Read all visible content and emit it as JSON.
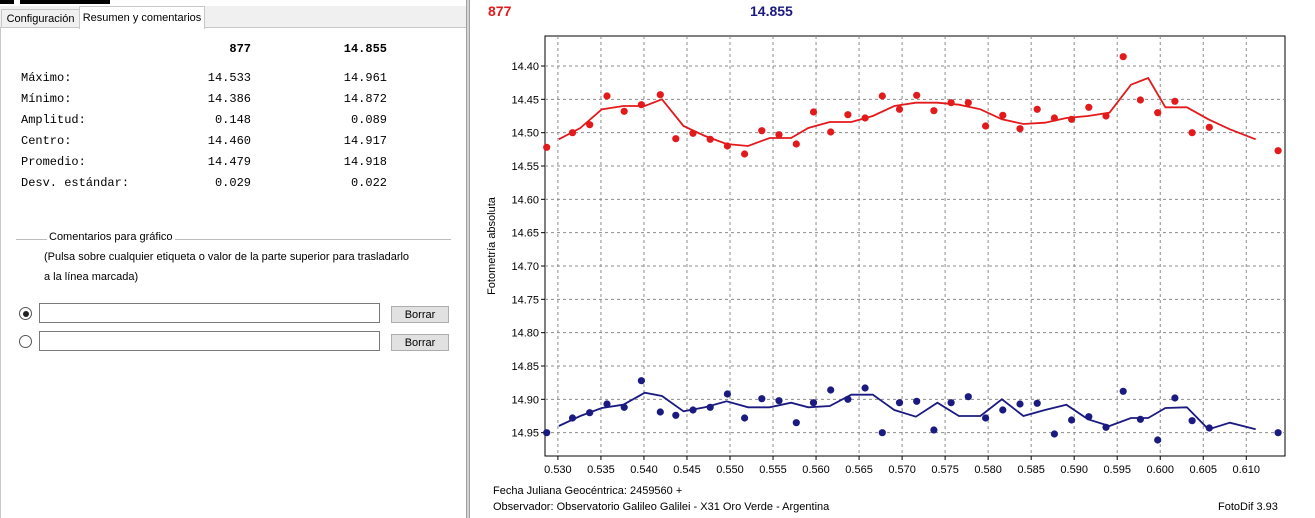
{
  "tabs": [
    {
      "label": "Configuración",
      "active": false
    },
    {
      "label": "Resumen y comentarios",
      "active": true
    }
  ],
  "summary": {
    "columns": [
      "877",
      "14.855"
    ],
    "rows": [
      {
        "label": "Máximo:",
        "values": [
          "14.533",
          "14.961"
        ]
      },
      {
        "label": "Mínimo:",
        "values": [
          "14.386",
          "14.872"
        ]
      },
      {
        "label": "Amplitud:",
        "values": [
          "0.148",
          "0.089"
        ]
      },
      {
        "label": "Centro:",
        "values": [
          "14.460",
          "14.917"
        ]
      },
      {
        "label": "Promedio:",
        "values": [
          "14.479",
          "14.918"
        ]
      },
      {
        "label": "Desv. estándar:",
        "values": [
          "0.029",
          "0.022"
        ]
      }
    ]
  },
  "comments": {
    "title": "Comentarios para gráfico",
    "hint_line1": "(Pulsa sobre cualquier etiqueta o valor de la parte superior para trasladarlo",
    "hint_line2": "a la línea marcada)",
    "fields": [
      {
        "value": "",
        "selected": true,
        "button": "Borrar"
      },
      {
        "value": "",
        "selected": false,
        "button": "Borrar"
      }
    ]
  },
  "chart_header": {
    "label1": "877",
    "label1_color": "#e31a1c",
    "label2": "14.855",
    "label2_color": "#1a1a80"
  },
  "footer": {
    "line1": "Fecha Juliana Geocéntrica: 2459560 +",
    "line2": "Observador: Observatorio Galileo Galilei - X31 Oro Verde - Argentina",
    "app": "FotoDif 3.93"
  },
  "chart_data": {
    "type": "scatter",
    "ylabel": "Fotometría absoluta",
    "xlabel": "",
    "y_inverted": true,
    "xlim": [
      0.5285,
      0.6145
    ],
    "ylim": [
      14.355,
      14.985
    ],
    "xticks": [
      0.53,
      0.535,
      0.54,
      0.545,
      0.55,
      0.555,
      0.56,
      0.565,
      0.57,
      0.575,
      0.58,
      0.585,
      0.59,
      0.595,
      0.6,
      0.605,
      0.61
    ],
    "yticks": [
      14.4,
      14.45,
      14.5,
      14.55,
      14.6,
      14.65,
      14.7,
      14.75,
      14.8,
      14.85,
      14.9,
      14.95
    ],
    "grid": true,
    "series": [
      {
        "color": "#e31a1c",
        "points": [
          [
            0.5287,
            14.522
          ],
          [
            0.5317,
            14.5
          ],
          [
            0.5337,
            14.488
          ],
          [
            0.5357,
            14.445
          ],
          [
            0.5377,
            14.468
          ],
          [
            0.5397,
            14.458
          ],
          [
            0.5419,
            14.443
          ],
          [
            0.5437,
            14.509
          ],
          [
            0.5457,
            14.501
          ],
          [
            0.5477,
            14.51
          ],
          [
            0.5497,
            14.52
          ],
          [
            0.5517,
            14.532
          ],
          [
            0.5537,
            14.497
          ],
          [
            0.5557,
            14.503
          ],
          [
            0.5577,
            14.517
          ],
          [
            0.5597,
            14.469
          ],
          [
            0.5617,
            14.499
          ],
          [
            0.5637,
            14.473
          ],
          [
            0.5657,
            14.478
          ],
          [
            0.5677,
            14.445
          ],
          [
            0.5697,
            14.465
          ],
          [
            0.5717,
            14.444
          ],
          [
            0.5737,
            14.467
          ],
          [
            0.5757,
            14.455
          ],
          [
            0.5777,
            14.455
          ],
          [
            0.5797,
            14.49
          ],
          [
            0.5817,
            14.474
          ],
          [
            0.5837,
            14.494
          ],
          [
            0.5857,
            14.465
          ],
          [
            0.5877,
            14.478
          ],
          [
            0.5897,
            14.48
          ],
          [
            0.5917,
            14.462
          ],
          [
            0.5937,
            14.475
          ],
          [
            0.5957,
            14.386
          ],
          [
            0.5977,
            14.451
          ],
          [
            0.5997,
            14.47
          ],
          [
            0.6017,
            14.453
          ],
          [
            0.6037,
            14.5
          ],
          [
            0.6057,
            14.492
          ],
          [
            0.6137,
            14.527
          ]
        ],
        "trend": [
          [
            0.5301,
            14.51
          ],
          [
            0.5326,
            14.493
          ],
          [
            0.5351,
            14.465
          ],
          [
            0.5376,
            14.46
          ],
          [
            0.5401,
            14.46
          ],
          [
            0.5421,
            14.45
          ],
          [
            0.5446,
            14.49
          ],
          [
            0.5471,
            14.505
          ],
          [
            0.5496,
            14.517
          ],
          [
            0.5521,
            14.52
          ],
          [
            0.5546,
            14.508
          ],
          [
            0.5571,
            14.508
          ],
          [
            0.5591,
            14.493
          ],
          [
            0.5616,
            14.484
          ],
          [
            0.5641,
            14.484
          ],
          [
            0.5666,
            14.475
          ],
          [
            0.5691,
            14.46
          ],
          [
            0.5716,
            14.455
          ],
          [
            0.5741,
            14.455
          ],
          [
            0.5766,
            14.458
          ],
          [
            0.5791,
            14.465
          ],
          [
            0.5816,
            14.48
          ],
          [
            0.5841,
            14.487
          ],
          [
            0.5866,
            14.485
          ],
          [
            0.5891,
            14.478
          ],
          [
            0.5916,
            14.475
          ],
          [
            0.5941,
            14.47
          ],
          [
            0.5966,
            14.428
          ],
          [
            0.5986,
            14.418
          ],
          [
            0.6006,
            14.462
          ],
          [
            0.6031,
            14.462
          ],
          [
            0.6056,
            14.48
          ],
          [
            0.6081,
            14.495
          ],
          [
            0.6111,
            14.51
          ]
        ]
      },
      {
        "color": "#1a1a80",
        "points": [
          [
            0.5287,
            14.95
          ],
          [
            0.5317,
            14.928
          ],
          [
            0.5337,
            14.92
          ],
          [
            0.5357,
            14.907
          ],
          [
            0.5377,
            14.912
          ],
          [
            0.5397,
            14.872
          ],
          [
            0.5419,
            14.919
          ],
          [
            0.5437,
            14.924
          ],
          [
            0.5457,
            14.916
          ],
          [
            0.5477,
            14.912
          ],
          [
            0.5497,
            14.892
          ],
          [
            0.5517,
            14.928
          ],
          [
            0.5537,
            14.899
          ],
          [
            0.5557,
            14.902
          ],
          [
            0.5577,
            14.935
          ],
          [
            0.5597,
            14.905
          ],
          [
            0.5617,
            14.886
          ],
          [
            0.5637,
            14.9
          ],
          [
            0.5657,
            14.883
          ],
          [
            0.5677,
            14.95
          ],
          [
            0.5697,
            14.905
          ],
          [
            0.5717,
            14.903
          ],
          [
            0.5737,
            14.946
          ],
          [
            0.5757,
            14.905
          ],
          [
            0.5777,
            14.896
          ],
          [
            0.5797,
            14.928
          ],
          [
            0.5817,
            14.916
          ],
          [
            0.5837,
            14.907
          ],
          [
            0.5857,
            14.906
          ],
          [
            0.5877,
            14.952
          ],
          [
            0.5897,
            14.931
          ],
          [
            0.5917,
            14.926
          ],
          [
            0.5937,
            14.942
          ],
          [
            0.5957,
            14.888
          ],
          [
            0.5977,
            14.93
          ],
          [
            0.5997,
            14.961
          ],
          [
            0.6017,
            14.898
          ],
          [
            0.6037,
            14.932
          ],
          [
            0.6057,
            14.943
          ],
          [
            0.6137,
            14.95
          ]
        ],
        "trend": [
          [
            0.5301,
            14.94
          ],
          [
            0.5326,
            14.925
          ],
          [
            0.5351,
            14.913
          ],
          [
            0.5376,
            14.908
          ],
          [
            0.5401,
            14.89
          ],
          [
            0.5421,
            14.895
          ],
          [
            0.5446,
            14.918
          ],
          [
            0.5471,
            14.912
          ],
          [
            0.5496,
            14.903
          ],
          [
            0.5521,
            14.912
          ],
          [
            0.5546,
            14.912
          ],
          [
            0.5571,
            14.905
          ],
          [
            0.5591,
            14.912
          ],
          [
            0.5616,
            14.91
          ],
          [
            0.5641,
            14.893
          ],
          [
            0.5666,
            14.893
          ],
          [
            0.5691,
            14.916
          ],
          [
            0.5716,
            14.926
          ],
          [
            0.5741,
            14.905
          ],
          [
            0.5766,
            14.925
          ],
          [
            0.5791,
            14.925
          ],
          [
            0.5816,
            14.9
          ],
          [
            0.5841,
            14.925
          ],
          [
            0.5866,
            14.916
          ],
          [
            0.5891,
            14.908
          ],
          [
            0.5916,
            14.93
          ],
          [
            0.5941,
            14.94
          ],
          [
            0.5966,
            14.928
          ],
          [
            0.5986,
            14.928
          ],
          [
            0.6006,
            14.913
          ],
          [
            0.6031,
            14.912
          ],
          [
            0.6056,
            14.945
          ],
          [
            0.6081,
            14.935
          ],
          [
            0.6111,
            14.945
          ]
        ]
      }
    ]
  }
}
